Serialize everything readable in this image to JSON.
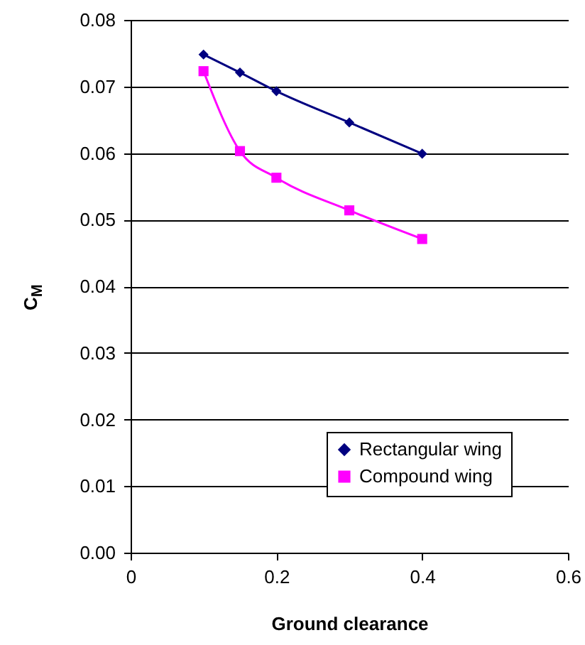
{
  "chart_data": {
    "type": "line",
    "xlabel": "Ground clearance",
    "ylabel": "C$_{M}$",
    "x": [
      0.1,
      0.15,
      0.2,
      0.3,
      0.4
    ],
    "series": [
      {
        "name": "Rectangular wing",
        "color": "#000080",
        "marker": "diamond",
        "values": [
          0.0748,
          0.0721,
          0.0693,
          0.0646,
          0.0599
        ]
      },
      {
        "name": "Compound wing",
        "color": "#ff00ff",
        "marker": "square",
        "values": [
          0.0723,
          0.0603,
          0.0563,
          0.0514,
          0.0471
        ]
      }
    ],
    "xlim": [
      0,
      0.6
    ],
    "xticks": [
      0,
      0.2,
      0.4,
      0.6
    ],
    "ylim": [
      0,
      0.08
    ],
    "yticks": [
      {
        "value": 0,
        "label": "0.00"
      },
      {
        "value": 0.01,
        "label": "0.01"
      },
      {
        "value": 0.02,
        "label": "0.02"
      },
      {
        "value": 0.03,
        "label": "0.03"
      },
      {
        "value": 0.04,
        "label": "0.04"
      },
      {
        "value": 0.05,
        "label": "0.05"
      },
      {
        "value": 0.06,
        "label": "0.06"
      },
      {
        "value": 0.07,
        "label": "0.07"
      },
      {
        "value": 0.08,
        "label": "0.08"
      }
    ],
    "grid": "y",
    "legend": "bottom right"
  }
}
